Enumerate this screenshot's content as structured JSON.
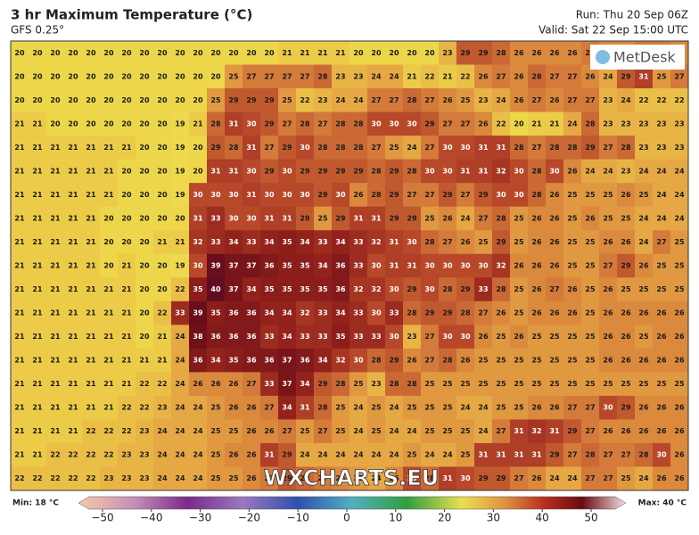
{
  "header": {
    "title": "3 hr Maximum Temperature (°C)",
    "subtitle": "GFS 0.25°",
    "run": "Run: Thu 20 Sep 06Z",
    "valid": "Valid: Sat 22 Sep 15:00 UTC"
  },
  "map": {
    "rows": [
      [
        20,
        20,
        20,
        20,
        20,
        20,
        20,
        20,
        20,
        20,
        20,
        20,
        20,
        20,
        20,
        21,
        21,
        21,
        21,
        20,
        20,
        20,
        20,
        20,
        23,
        29,
        29,
        28,
        26,
        26,
        26,
        26,
        27,
        26,
        26,
        27,
        27,
        26
      ],
      [
        20,
        20,
        20,
        20,
        20,
        20,
        20,
        20,
        20,
        20,
        20,
        20,
        25,
        27,
        27,
        27,
        27,
        28,
        23,
        23,
        24,
        24,
        21,
        22,
        21,
        22,
        26,
        27,
        26,
        28,
        27,
        27,
        26,
        24,
        29,
        31,
        25,
        27
      ],
      [
        20,
        20,
        20,
        20,
        20,
        20,
        20,
        20,
        20,
        20,
        20,
        25,
        29,
        29,
        29,
        25,
        22,
        23,
        24,
        24,
        27,
        27,
        28,
        27,
        26,
        25,
        23,
        24,
        26,
        27,
        26,
        27,
        27,
        23,
        24,
        22,
        22,
        22
      ],
      [
        21,
        21,
        20,
        20,
        20,
        20,
        20,
        20,
        20,
        19,
        21,
        28,
        31,
        30,
        29,
        27,
        28,
        27,
        28,
        28,
        30,
        30,
        30,
        29,
        27,
        27,
        26,
        22,
        20,
        21,
        21,
        24,
        28,
        23,
        23,
        23,
        23,
        23
      ],
      [
        21,
        21,
        21,
        21,
        21,
        21,
        21,
        20,
        20,
        19,
        20,
        29,
        28,
        31,
        27,
        29,
        30,
        28,
        28,
        28,
        27,
        25,
        24,
        27,
        30,
        30,
        31,
        31,
        28,
        27,
        28,
        28,
        29,
        27,
        28,
        23,
        23,
        23
      ],
      [
        21,
        21,
        21,
        21,
        21,
        21,
        20,
        20,
        20,
        19,
        20,
        31,
        31,
        30,
        29,
        30,
        29,
        29,
        29,
        29,
        28,
        29,
        28,
        30,
        30,
        31,
        31,
        32,
        30,
        28,
        30,
        26,
        24,
        24,
        23,
        24,
        24,
        24
      ],
      [
        21,
        21,
        21,
        21,
        21,
        21,
        20,
        20,
        20,
        19,
        30,
        30,
        30,
        31,
        30,
        30,
        30,
        29,
        30,
        26,
        28,
        29,
        27,
        27,
        29,
        27,
        29,
        30,
        30,
        28,
        26,
        25,
        25,
        25,
        26,
        25,
        24,
        24
      ],
      [
        21,
        21,
        21,
        21,
        21,
        20,
        20,
        20,
        20,
        20,
        31,
        33,
        30,
        30,
        31,
        31,
        29,
        25,
        29,
        31,
        31,
        29,
        29,
        25,
        26,
        24,
        27,
        28,
        25,
        26,
        26,
        25,
        26,
        25,
        25,
        24,
        24,
        24
      ],
      [
        21,
        21,
        21,
        21,
        21,
        20,
        20,
        20,
        21,
        21,
        32,
        33,
        34,
        33,
        34,
        35,
        34,
        33,
        34,
        33,
        32,
        31,
        30,
        28,
        27,
        26,
        25,
        29,
        25,
        26,
        26,
        25,
        25,
        26,
        26,
        24,
        27,
        25
      ],
      [
        21,
        21,
        21,
        21,
        21,
        20,
        21,
        20,
        20,
        19,
        30,
        39,
        37,
        37,
        36,
        35,
        35,
        34,
        36,
        33,
        30,
        31,
        31,
        30,
        30,
        30,
        30,
        32,
        26,
        26,
        26,
        25,
        25,
        27,
        29,
        26,
        25,
        25
      ],
      [
        21,
        21,
        21,
        21,
        21,
        21,
        21,
        20,
        20,
        22,
        35,
        40,
        37,
        34,
        35,
        35,
        35,
        35,
        36,
        32,
        32,
        30,
        29,
        30,
        28,
        29,
        33,
        28,
        25,
        26,
        27,
        26,
        25,
        26,
        25,
        25,
        25,
        25
      ],
      [
        21,
        21,
        21,
        21,
        21,
        21,
        21,
        20,
        22,
        33,
        39,
        35,
        36,
        36,
        34,
        34,
        32,
        33,
        34,
        33,
        30,
        33,
        28,
        29,
        29,
        28,
        27,
        26,
        25,
        26,
        26,
        26,
        25,
        26,
        26,
        26,
        26,
        26
      ],
      [
        21,
        21,
        21,
        21,
        21,
        21,
        21,
        20,
        21,
        24,
        38,
        36,
        36,
        36,
        33,
        34,
        33,
        33,
        35,
        33,
        33,
        30,
        23,
        27,
        30,
        30,
        26,
        25,
        26,
        25,
        25,
        25,
        25,
        26,
        26,
        25,
        26,
        26
      ],
      [
        21,
        21,
        21,
        21,
        21,
        21,
        21,
        21,
        21,
        24,
        36,
        34,
        35,
        36,
        36,
        37,
        36,
        34,
        32,
        30,
        28,
        29,
        26,
        27,
        28,
        26,
        25,
        25,
        25,
        25,
        25,
        25,
        25,
        26,
        26,
        26,
        26,
        26
      ],
      [
        21,
        21,
        21,
        21,
        21,
        21,
        21,
        22,
        22,
        24,
        26,
        26,
        26,
        27,
        33,
        37,
        34,
        29,
        28,
        25,
        23,
        28,
        28,
        25,
        25,
        25,
        25,
        25,
        25,
        25,
        25,
        25,
        25,
        25,
        25,
        25,
        25,
        25
      ],
      [
        21,
        21,
        21,
        21,
        21,
        21,
        22,
        22,
        23,
        24,
        24,
        25,
        26,
        26,
        27,
        34,
        31,
        28,
        25,
        24,
        25,
        24,
        25,
        25,
        25,
        24,
        24,
        25,
        25,
        26,
        26,
        27,
        27,
        30,
        29,
        26,
        26,
        26
      ],
      [
        21,
        21,
        21,
        21,
        22,
        22,
        22,
        23,
        24,
        24,
        24,
        25,
        25,
        26,
        26,
        27,
        25,
        27,
        25,
        24,
        25,
        24,
        24,
        25,
        25,
        25,
        24,
        27,
        31,
        32,
        31,
        29,
        27,
        26,
        26,
        26,
        26,
        26
      ],
      [
        21,
        21,
        22,
        22,
        22,
        22,
        23,
        23,
        24,
        24,
        24,
        25,
        26,
        26,
        31,
        29,
        24,
        24,
        24,
        24,
        24,
        24,
        25,
        24,
        24,
        25,
        31,
        31,
        31,
        31,
        29,
        27,
        28,
        27,
        27,
        28,
        30,
        26
      ],
      [
        22,
        22,
        22,
        22,
        22,
        23,
        23,
        23,
        24,
        24,
        24,
        25,
        25,
        26,
        27,
        29,
        28,
        27,
        26,
        25,
        24,
        26,
        30,
        28,
        31,
        30,
        29,
        29,
        27,
        26,
        24,
        24,
        27,
        27,
        25,
        24,
        26,
        26
      ]
    ],
    "watermark": "WXCHARTS.EU",
    "logo": "MetDesk"
  },
  "legend": {
    "min": "Min: 18 °C",
    "max": "Max: 40 °C",
    "ticks": [
      {
        "value": -50,
        "label": "−50"
      },
      {
        "value": -40,
        "label": "−40"
      },
      {
        "value": -30,
        "label": "−30"
      },
      {
        "value": -20,
        "label": "−20"
      },
      {
        "value": -10,
        "label": "−10"
      },
      0,
      10,
      20,
      30,
      40,
      50
    ]
  }
}
